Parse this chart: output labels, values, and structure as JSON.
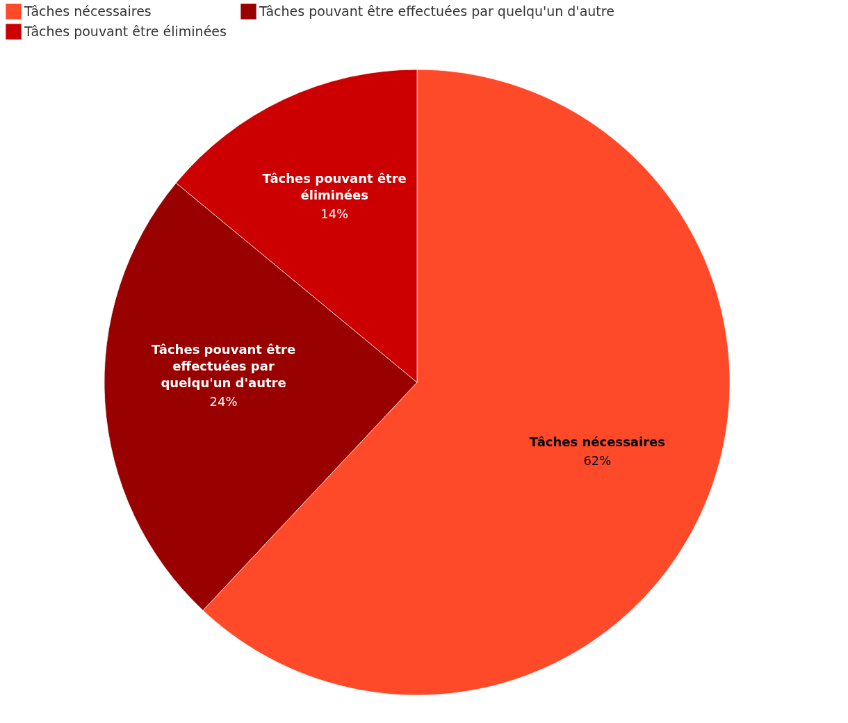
{
  "chart_data": {
    "type": "pie",
    "categories": [
      "Tâches nécessaires",
      "Tâches pouvant être effectuées par quelqu'un d'autre",
      "Tâches pouvant être éliminées"
    ],
    "values": [
      62,
      24,
      14
    ],
    "value_labels": [
      "62%",
      "24%",
      "14%"
    ],
    "colors": [
      "#ff4a2a",
      "#990000",
      "#cc0000"
    ],
    "legend": "top left"
  }
}
